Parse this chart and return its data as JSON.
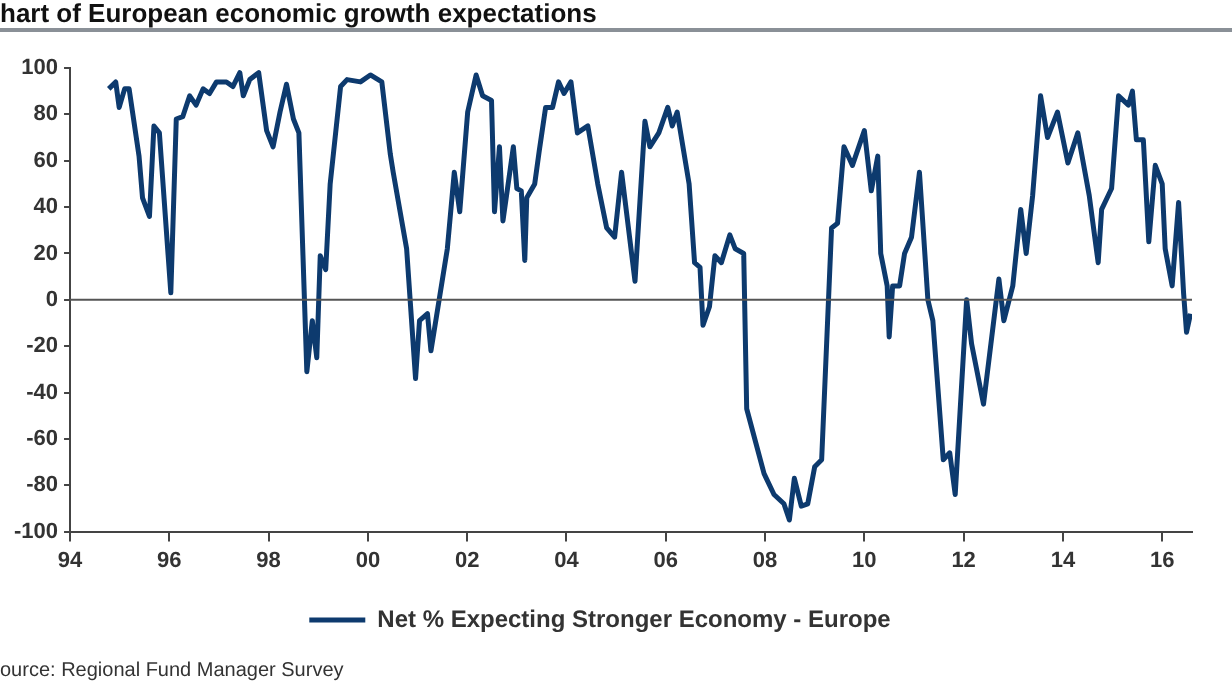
{
  "chart_data": {
    "type": "line",
    "title": "hart of European economic growth expectations",
    "annotations": [
      "ource: Regional Fund Manager Survey"
    ],
    "xlim": [
      1994,
      2016.6
    ],
    "xticks": [
      {
        "value": 1994,
        "label": "94"
      },
      {
        "value": 1996,
        "label": "96"
      },
      {
        "value": 1998,
        "label": "98"
      },
      {
        "value": 2000,
        "label": "00"
      },
      {
        "value": 2002,
        "label": "02"
      },
      {
        "value": 2004,
        "label": "04"
      },
      {
        "value": 2006,
        "label": "06"
      },
      {
        "value": 2008,
        "label": "08"
      },
      {
        "value": 2010,
        "label": "10"
      },
      {
        "value": 2012,
        "label": "12"
      },
      {
        "value": 2014,
        "label": "14"
      },
      {
        "value": 2016,
        "label": "16"
      }
    ],
    "ylim": [
      -100,
      100
    ],
    "yticks": [
      -100,
      -80,
      -60,
      -40,
      -20,
      0,
      20,
      40,
      60,
      80,
      100
    ],
    "grid": false,
    "legend": "bottom",
    "marker": "none",
    "line_style": "solid",
    "ref_lines": [
      {
        "axis": "y",
        "value": 0,
        "color": "#555555"
      }
    ],
    "series": [
      {
        "name": "Net % Expecting Stronger Economy - Europe",
        "color": "#0d3a6e",
        "x": [
          1994.78,
          1994.92,
          1994.99,
          1995.1,
          1995.19,
          1995.39,
          1995.46,
          1995.6,
          1995.69,
          1995.8,
          1996.03,
          1996.14,
          1996.27,
          1996.41,
          1996.54,
          1996.68,
          1996.81,
          1996.95,
          1997.15,
          1997.28,
          1997.42,
          1997.49,
          1997.62,
          1997.8,
          1997.96,
          1998.09,
          1998.23,
          1998.36,
          1998.5,
          1998.61,
          1998.77,
          1998.88,
          1998.97,
          1999.04,
          1999.15,
          1999.24,
          1999.45,
          1999.58,
          1999.85,
          2000.05,
          2000.28,
          2000.45,
          2000.51,
          2000.78,
          2000.96,
          2001.04,
          2001.2,
          2001.27,
          2001.6,
          2001.74,
          2001.85,
          2002.01,
          2002.18,
          2002.31,
          2002.49,
          2002.55,
          2002.65,
          2002.72,
          2002.93,
          2003.0,
          2003.09,
          2003.16,
          2003.2,
          2003.36,
          2003.45,
          2003.58,
          2003.72,
          2003.84,
          2003.95,
          2004.09,
          2004.22,
          2004.43,
          2004.63,
          2004.81,
          2004.97,
          2005.11,
          2005.38,
          2005.58,
          2005.68,
          2005.86,
          2006.04,
          2006.13,
          2006.23,
          2006.47,
          2006.58,
          2006.69,
          2006.75,
          2006.88,
          2006.99,
          2007.12,
          2007.29,
          2007.4,
          2007.57,
          2007.63,
          2007.98,
          2008.18,
          2008.38,
          2008.49,
          2008.59,
          2008.73,
          2008.86,
          2009.0,
          2009.14,
          2009.34,
          2009.46,
          2009.59,
          2009.76,
          2010.0,
          2010.14,
          2010.27,
          2010.33,
          2010.46,
          2010.5,
          2010.57,
          2010.71,
          2010.81,
          2010.95,
          2011.11,
          2011.28,
          2011.38,
          2011.59,
          2011.72,
          2011.83,
          2012.06,
          2012.16,
          2012.4,
          2012.71,
          2012.81,
          2012.99,
          2013.15,
          2013.26,
          2013.39,
          2013.55,
          2013.69,
          2013.89,
          2014.1,
          2014.3,
          2014.53,
          2014.71,
          2014.78,
          2014.98,
          2015.12,
          2015.32,
          2015.4,
          2015.48,
          2015.62,
          2015.73,
          2015.86,
          2016.0,
          2016.06,
          2016.2,
          2016.33,
          2016.43,
          2016.49,
          2016.57
        ],
        "values": [
          91,
          94,
          83,
          91,
          91,
          62,
          44,
          36,
          75,
          72,
          3,
          78,
          79,
          88,
          84,
          91,
          89,
          94,
          94,
          92,
          98,
          88,
          95,
          98,
          73,
          66,
          81,
          93,
          78,
          72,
          -31,
          -9,
          -25,
          19,
          13,
          50,
          92,
          95,
          94,
          97,
          94,
          63,
          55,
          22,
          -34,
          -9,
          -6,
          -22,
          22,
          55,
          38,
          81,
          97,
          88,
          86,
          38,
          66,
          34,
          66,
          48,
          47,
          17,
          44,
          50,
          64,
          83,
          83,
          94,
          89,
          94,
          72,
          75,
          50,
          31,
          27,
          55,
          8,
          77,
          66,
          72,
          83,
          75,
          81,
          50,
          16,
          14,
          -11,
          -3,
          19,
          16,
          28,
          22,
          20,
          -47,
          -75,
          -84,
          -88,
          -95,
          -77,
          -89,
          -88,
          -72,
          -69,
          31,
          33,
          66,
          58,
          73,
          47,
          62,
          20,
          6,
          -16,
          6,
          6,
          20,
          27,
          55,
          0,
          -9,
          -69,
          -66,
          -84,
          0,
          -19,
          -45,
          9,
          -9,
          6,
          39,
          20,
          45,
          88,
          70,
          81,
          59,
          72,
          45,
          16,
          39,
          48,
          88,
          84,
          90,
          69,
          69,
          25,
          58,
          50,
          22,
          6,
          42,
          3,
          -14,
          -6
        ]
      }
    ]
  }
}
